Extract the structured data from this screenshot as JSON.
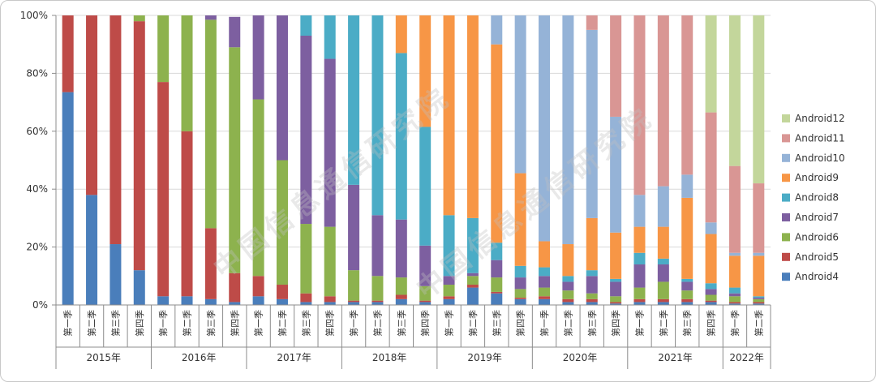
{
  "watermark": "中国信息通信研究院",
  "chart_data": {
    "type": "bar",
    "stacked": true,
    "normalized": true,
    "ylim": [
      0,
      100
    ],
    "y_ticks": [
      "0%",
      "20%",
      "40%",
      "60%",
      "80%",
      "100%"
    ],
    "grid": true,
    "legend_position": "right",
    "quarter_labels": [
      "第一季",
      "第二季",
      "第三季",
      "第四季"
    ],
    "years": [
      {
        "label": "2015年",
        "quarters": 4
      },
      {
        "label": "2016年",
        "quarters": 4
      },
      {
        "label": "2017年",
        "quarters": 4
      },
      {
        "label": "2018年",
        "quarters": 4
      },
      {
        "label": "2019年",
        "quarters": 4
      },
      {
        "label": "2020年",
        "quarters": 4
      },
      {
        "label": "2021年",
        "quarters": 4
      },
      {
        "label": "2022年",
        "quarters": 2
      }
    ],
    "categories": [
      "2015年第一季",
      "2015年第二季",
      "2015年第三季",
      "2015年第四季",
      "2016年第一季",
      "2016年第二季",
      "2016年第三季",
      "2016年第四季",
      "2017年第一季",
      "2017年第二季",
      "2017年第三季",
      "2017年第四季",
      "2018年第一季",
      "2018年第二季",
      "2018年第三季",
      "2018年第四季",
      "2019年第一季",
      "2019年第二季",
      "2019年第三季",
      "2019年第四季",
      "2020年第一季",
      "2020年第二季",
      "2020年第三季",
      "2020年第四季",
      "2021年第一季",
      "2021年第二季",
      "2021年第三季",
      "2021年第四季",
      "2022年第一季",
      "2022年第二季"
    ],
    "series": [
      {
        "name": "Android4",
        "color": "#4a7ebb",
        "values": [
          73.5,
          38,
          21,
          12,
          3,
          3,
          2,
          1,
          3,
          2,
          1,
          1,
          1,
          1,
          2,
          1,
          2,
          6,
          4,
          2,
          2,
          1,
          1,
          0.5,
          1,
          1,
          1,
          1,
          0.5,
          0.5
        ]
      },
      {
        "name": "Android5",
        "color": "#be4b48",
        "values": [
          26.5,
          62,
          79,
          86,
          74,
          57,
          24.5,
          10,
          7,
          5,
          3,
          2,
          0.5,
          0.5,
          1.5,
          0.5,
          1,
          1,
          0.5,
          0.5,
          1,
          1,
          1,
          0.5,
          1,
          1,
          1,
          0.5,
          0.5,
          0.5
        ]
      },
      {
        "name": "Android6",
        "color": "#8db24e",
        "values": [
          0,
          0,
          0,
          2,
          23,
          40,
          72,
          78,
          61,
          43,
          24,
          24,
          10.5,
          8.5,
          6,
          5,
          4,
          3,
          5,
          3,
          3,
          3,
          2,
          2,
          4,
          6,
          3,
          2,
          2,
          1
        ]
      },
      {
        "name": "Android7",
        "color": "#7d5fa0",
        "values": [
          0,
          0,
          0,
          0,
          0,
          0,
          1.5,
          10.5,
          29,
          50,
          65,
          58,
          29.5,
          21,
          20,
          14,
          3,
          1,
          6,
          4,
          4,
          3,
          6,
          5,
          8,
          6,
          3,
          2,
          1,
          0.5
        ]
      },
      {
        "name": "Android8",
        "color": "#4bacc6",
        "values": [
          0,
          0,
          0,
          0,
          0,
          0,
          0,
          0,
          0,
          0,
          7,
          15,
          58.5,
          69,
          57.5,
          41,
          21,
          19,
          6,
          4,
          3,
          2,
          2,
          1,
          4,
          2,
          1,
          2,
          2,
          0.5
        ]
      },
      {
        "name": "Android9",
        "color": "#f79646",
        "values": [
          0,
          0,
          0,
          0,
          0,
          0,
          0,
          0,
          0,
          0,
          0,
          0,
          0,
          0,
          13,
          38.5,
          69,
          70,
          68.5,
          32,
          9,
          11,
          18,
          16,
          9,
          11,
          28,
          17,
          11,
          14
        ]
      },
      {
        "name": "Android10",
        "color": "#95b3d7",
        "values": [
          0,
          0,
          0,
          0,
          0,
          0,
          0,
          0,
          0,
          0,
          0,
          0,
          0,
          0,
          0,
          0,
          0,
          0,
          10,
          54.5,
          78,
          79,
          65,
          40,
          11,
          14,
          8,
          4,
          1,
          1
        ]
      },
      {
        "name": "Android11",
        "color": "#d99694",
        "values": [
          0,
          0,
          0,
          0,
          0,
          0,
          0,
          0,
          0,
          0,
          0,
          0,
          0,
          0,
          0,
          0,
          0,
          0,
          0,
          0,
          0,
          0,
          5,
          35,
          62,
          59,
          55,
          38,
          30,
          24
        ]
      },
      {
        "name": "Android12",
        "color": "#c3d69b",
        "values": [
          0,
          0,
          0,
          0,
          0,
          0,
          0,
          0,
          0,
          0,
          0,
          0,
          0,
          0,
          0,
          0,
          0,
          0,
          0,
          0,
          0,
          0,
          0,
          0,
          0,
          0,
          0,
          33.5,
          52,
          58
        ]
      }
    ]
  }
}
